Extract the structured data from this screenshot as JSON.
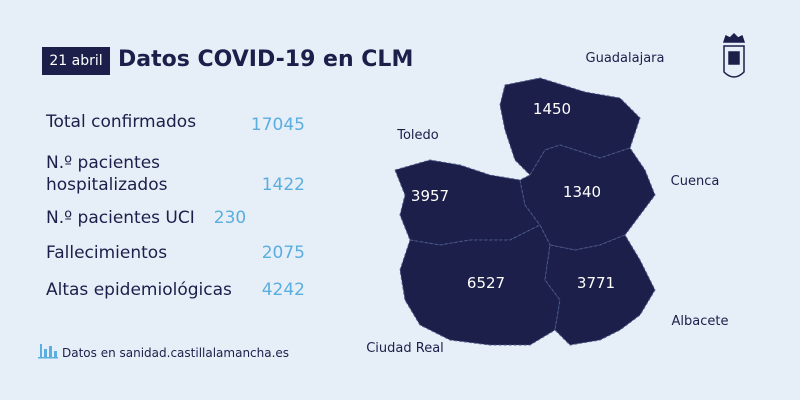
{
  "header": {
    "date": "21 abril",
    "title": "Datos COVID-19 en CLM"
  },
  "stats": [
    {
      "label": "Total confirmados",
      "value": 17045
    },
    {
      "label": "N.º pacientes hospitalizados",
      "value": 1422
    },
    {
      "label": "N.º pacientes UCI",
      "value": 230
    },
    {
      "label": "Fallecimientos",
      "value": 2075
    },
    {
      "label": "Altas epidemiológicas",
      "value": 4242
    }
  ],
  "footer": "Datos en sanidad.castillalamancha.es",
  "map": {
    "regions": [
      {
        "name": "Guadalajara",
        "value": 1450
      },
      {
        "name": "Toledo",
        "value": 3957
      },
      {
        "name": "Cuenca",
        "value": 1340
      },
      {
        "name": "Ciudad Real",
        "value": 6527
      },
      {
        "name": "Albacete",
        "value": 3771
      }
    ]
  }
}
